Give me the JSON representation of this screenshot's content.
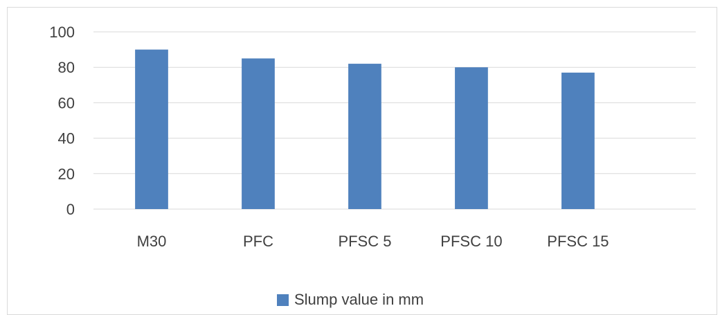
{
  "chart_data": {
    "type": "bar",
    "title": "",
    "xlabel": "",
    "ylabel": "",
    "categories": [
      "M30",
      "PFC",
      "PFSC 5",
      "PFSC 10",
      "PFSC 15"
    ],
    "series": [
      {
        "name": "Slump value in mm",
        "values": [
          90,
          85,
          82,
          80,
          77
        ],
        "color": "#4f81bd"
      }
    ],
    "ylim": [
      0,
      100
    ],
    "yticks": [
      0,
      20,
      40,
      60,
      80,
      100
    ],
    "grid": true,
    "legend_position": "bottom"
  }
}
